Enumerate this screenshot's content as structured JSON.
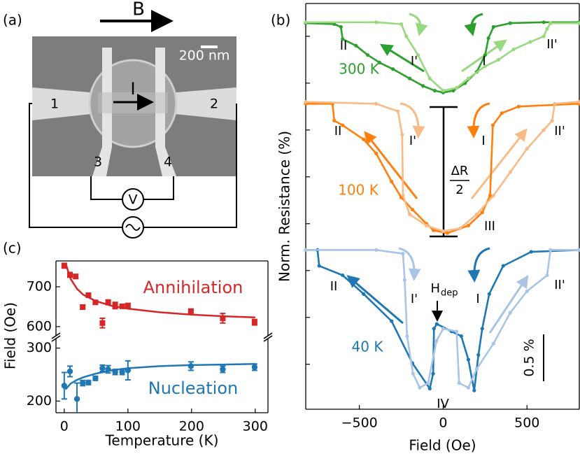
{
  "panel_labels": [
    "(a)",
    "(b)",
    "(c)"
  ],
  "schematic": {
    "field_label": "B",
    "scale_label": "200 nm",
    "current_label": "I",
    "contacts": [
      "1",
      "2",
      "3",
      "4"
    ],
    "voltmeter": "V"
  },
  "chart_data": [
    {
      "type": "line",
      "xlabel": "Field (Oe)",
      "ylabel": "Norm. Resistance (%)",
      "xlim": [
        -820,
        812
      ],
      "ylim": [
        0.02,
        4.35
      ],
      "xticks": [
        {
          "value": -500,
          "label": "−500"
        },
        0,
        500
      ],
      "yticks": [
        0.5,
        1.0,
        1.5,
        2.0,
        2.5,
        3.0,
        3.5,
        4.0
      ],
      "show_ytick_labels": false,
      "series": [
        {
          "name": "300 K",
          "color": "#2ca02c",
          "x": [
            -820,
            -650,
            -610,
            -600,
            -520,
            -450,
            -380,
            -300,
            -200,
            -120,
            -50,
            0,
            60,
            130,
            200,
            250,
            270,
            300,
            400,
            600,
            810
          ],
          "values": [
            4.14,
            4.13,
            4.1,
            3.97,
            3.9,
            3.8,
            3.72,
            3.65,
            3.55,
            3.47,
            3.42,
            3.4,
            3.42,
            3.5,
            3.62,
            3.8,
            3.98,
            4.1,
            4.14,
            4.15,
            4.15
          ]
        },
        {
          "color": "#98d97f",
          "x": [
            -820,
            -400,
            -250,
            -220,
            -150,
            -80,
            0,
            80,
            150,
            250,
            330,
            420,
            520,
            600,
            620,
            640,
            810
          ],
          "values": [
            4.15,
            4.15,
            4.13,
            4.0,
            3.8,
            3.55,
            3.42,
            3.45,
            3.55,
            3.68,
            3.75,
            3.86,
            3.94,
            4.0,
            4.08,
            4.14,
            4.14
          ]
        },
        {
          "name": "100 K",
          "color": "#ff7f0e",
          "x": [
            -820,
            -660,
            -650,
            -600,
            -475,
            -400,
            -308,
            -250,
            -183,
            -100,
            -58,
            25,
            150,
            233,
            280,
            296,
            350,
            450,
            810
          ],
          "values": [
            3.28,
            3.28,
            3.1,
            3.05,
            2.9,
            2.75,
            2.45,
            2.28,
            2.15,
            2.0,
            1.93,
            1.9,
            1.98,
            2.12,
            2.3,
            3.05,
            3.18,
            3.25,
            3.28
          ]
        },
        {
          "color": "#f9bb85",
          "x": [
            -820,
            -400,
            -270,
            -245,
            -240,
            -200,
            -100,
            0,
            100,
            200,
            300,
            400,
            500,
            600,
            650,
            665,
            810
          ],
          "values": [
            3.3,
            3.28,
            3.2,
            2.95,
            2.3,
            2.1,
            1.98,
            1.92,
            1.95,
            2.1,
            2.3,
            2.55,
            2.8,
            3.0,
            3.1,
            3.28,
            3.3
          ]
        },
        {
          "name": "40 K",
          "color": "#1f77b4",
          "x": [
            -820,
            -750,
            -740,
            -600,
            -475,
            -308,
            -183,
            -80,
            -60,
            -55,
            -38,
            50,
            108,
            150,
            185,
            210,
            233,
            275,
            358,
            525,
            810
          ],
          "values": [
            1.72,
            1.72,
            1.55,
            1.45,
            1.25,
            0.96,
            0.51,
            0.24,
            0.4,
            0.88,
            0.93,
            0.85,
            0.8,
            0.55,
            0.22,
            0.6,
            0.88,
            1.25,
            1.55,
            1.7,
            1.72
          ]
        },
        {
          "color": "#a9c4e4",
          "x": [
            -820,
            -400,
            -240,
            -230,
            -215,
            -180,
            -140,
            -90,
            -40,
            0,
            80,
            95,
            150,
            200,
            300,
            400,
            500,
            620,
            640,
            810
          ],
          "values": [
            1.72,
            1.72,
            1.68,
            1.4,
            0.8,
            0.4,
            0.25,
            0.3,
            0.75,
            0.88,
            0.85,
            0.3,
            0.25,
            0.45,
            0.72,
            1.05,
            1.28,
            1.45,
            1.72,
            1.72
          ]
        }
      ],
      "annotations": [
        "II",
        "I'",
        "I",
        "II'",
        "II",
        "I'",
        "I",
        "II'",
        "III",
        "II",
        "I'",
        "I",
        "II'",
        "IV",
        {
          "text": "H",
          "subscript": "dep"
        },
        {
          "numerator": "ΔR",
          "denominator": "2"
        }
      ],
      "scale_bar": {
        "value": 0.5,
        "label": "0.5 %"
      }
    },
    {
      "type": "scatter",
      "ylabel": "Field (Oe)",
      "xlim": [
        -13,
        320
      ],
      "ylim": [
        577,
        765
      ],
      "yticks": [
        600,
        700
      ],
      "series": [
        {
          "name": "Annihilation",
          "color": "#d62728",
          "marker": "square",
          "x": [
            0,
            9,
            18,
            29,
            38,
            49,
            60,
            69,
            80,
            91,
            100,
            199,
            249,
            299
          ],
          "values": [
            753,
            730,
            726,
            649,
            679,
            661,
            609,
            661,
            653,
            651,
            653,
            639,
            621,
            611
          ],
          "errors": [
            6,
            6,
            5,
            5,
            4,
            4,
            12,
            6,
            8,
            4,
            5,
            5,
            12,
            7
          ]
        },
        {
          "color": "#d62728",
          "style": "line",
          "x": [
            2,
            10,
            20,
            30,
            50,
            75,
            100,
            150,
            200,
            250,
            300
          ],
          "values": [
            760,
            720,
            695,
            680,
            664,
            652,
            645,
            636,
            630,
            626,
            623
          ]
        }
      ]
    },
    {
      "type": "scatter",
      "xlabel": "Temperature (K)",
      "xlim": [
        -13,
        320
      ],
      "ylim": [
        178,
        318
      ],
      "xticks": [
        0,
        100,
        200,
        300
      ],
      "yticks": [
        200,
        300
      ],
      "series": [
        {
          "name": "Nucleation",
          "color": "#1f77b4",
          "marker": "circle",
          "x": [
            0,
            9,
            20,
            29,
            38,
            49,
            60,
            69,
            80,
            91,
            100,
            199,
            249,
            299
          ],
          "values": [
            229,
            256,
            204,
            234,
            235,
            243,
            262,
            260,
            255,
            255,
            258,
            266,
            260,
            264
          ],
          "errors": [
            25,
            10,
            30,
            5,
            4,
            4,
            6,
            7,
            5,
            5,
            18,
            8,
            6,
            6
          ]
        },
        {
          "color": "#1f77b4",
          "style": "line",
          "x": [
            2,
            10,
            20,
            30,
            50,
            75,
            100,
            150,
            200,
            250,
            300
          ],
          "values": [
            222,
            233,
            240,
            245,
            252,
            258,
            262,
            266,
            268,
            269,
            270
          ]
        }
      ]
    }
  ]
}
